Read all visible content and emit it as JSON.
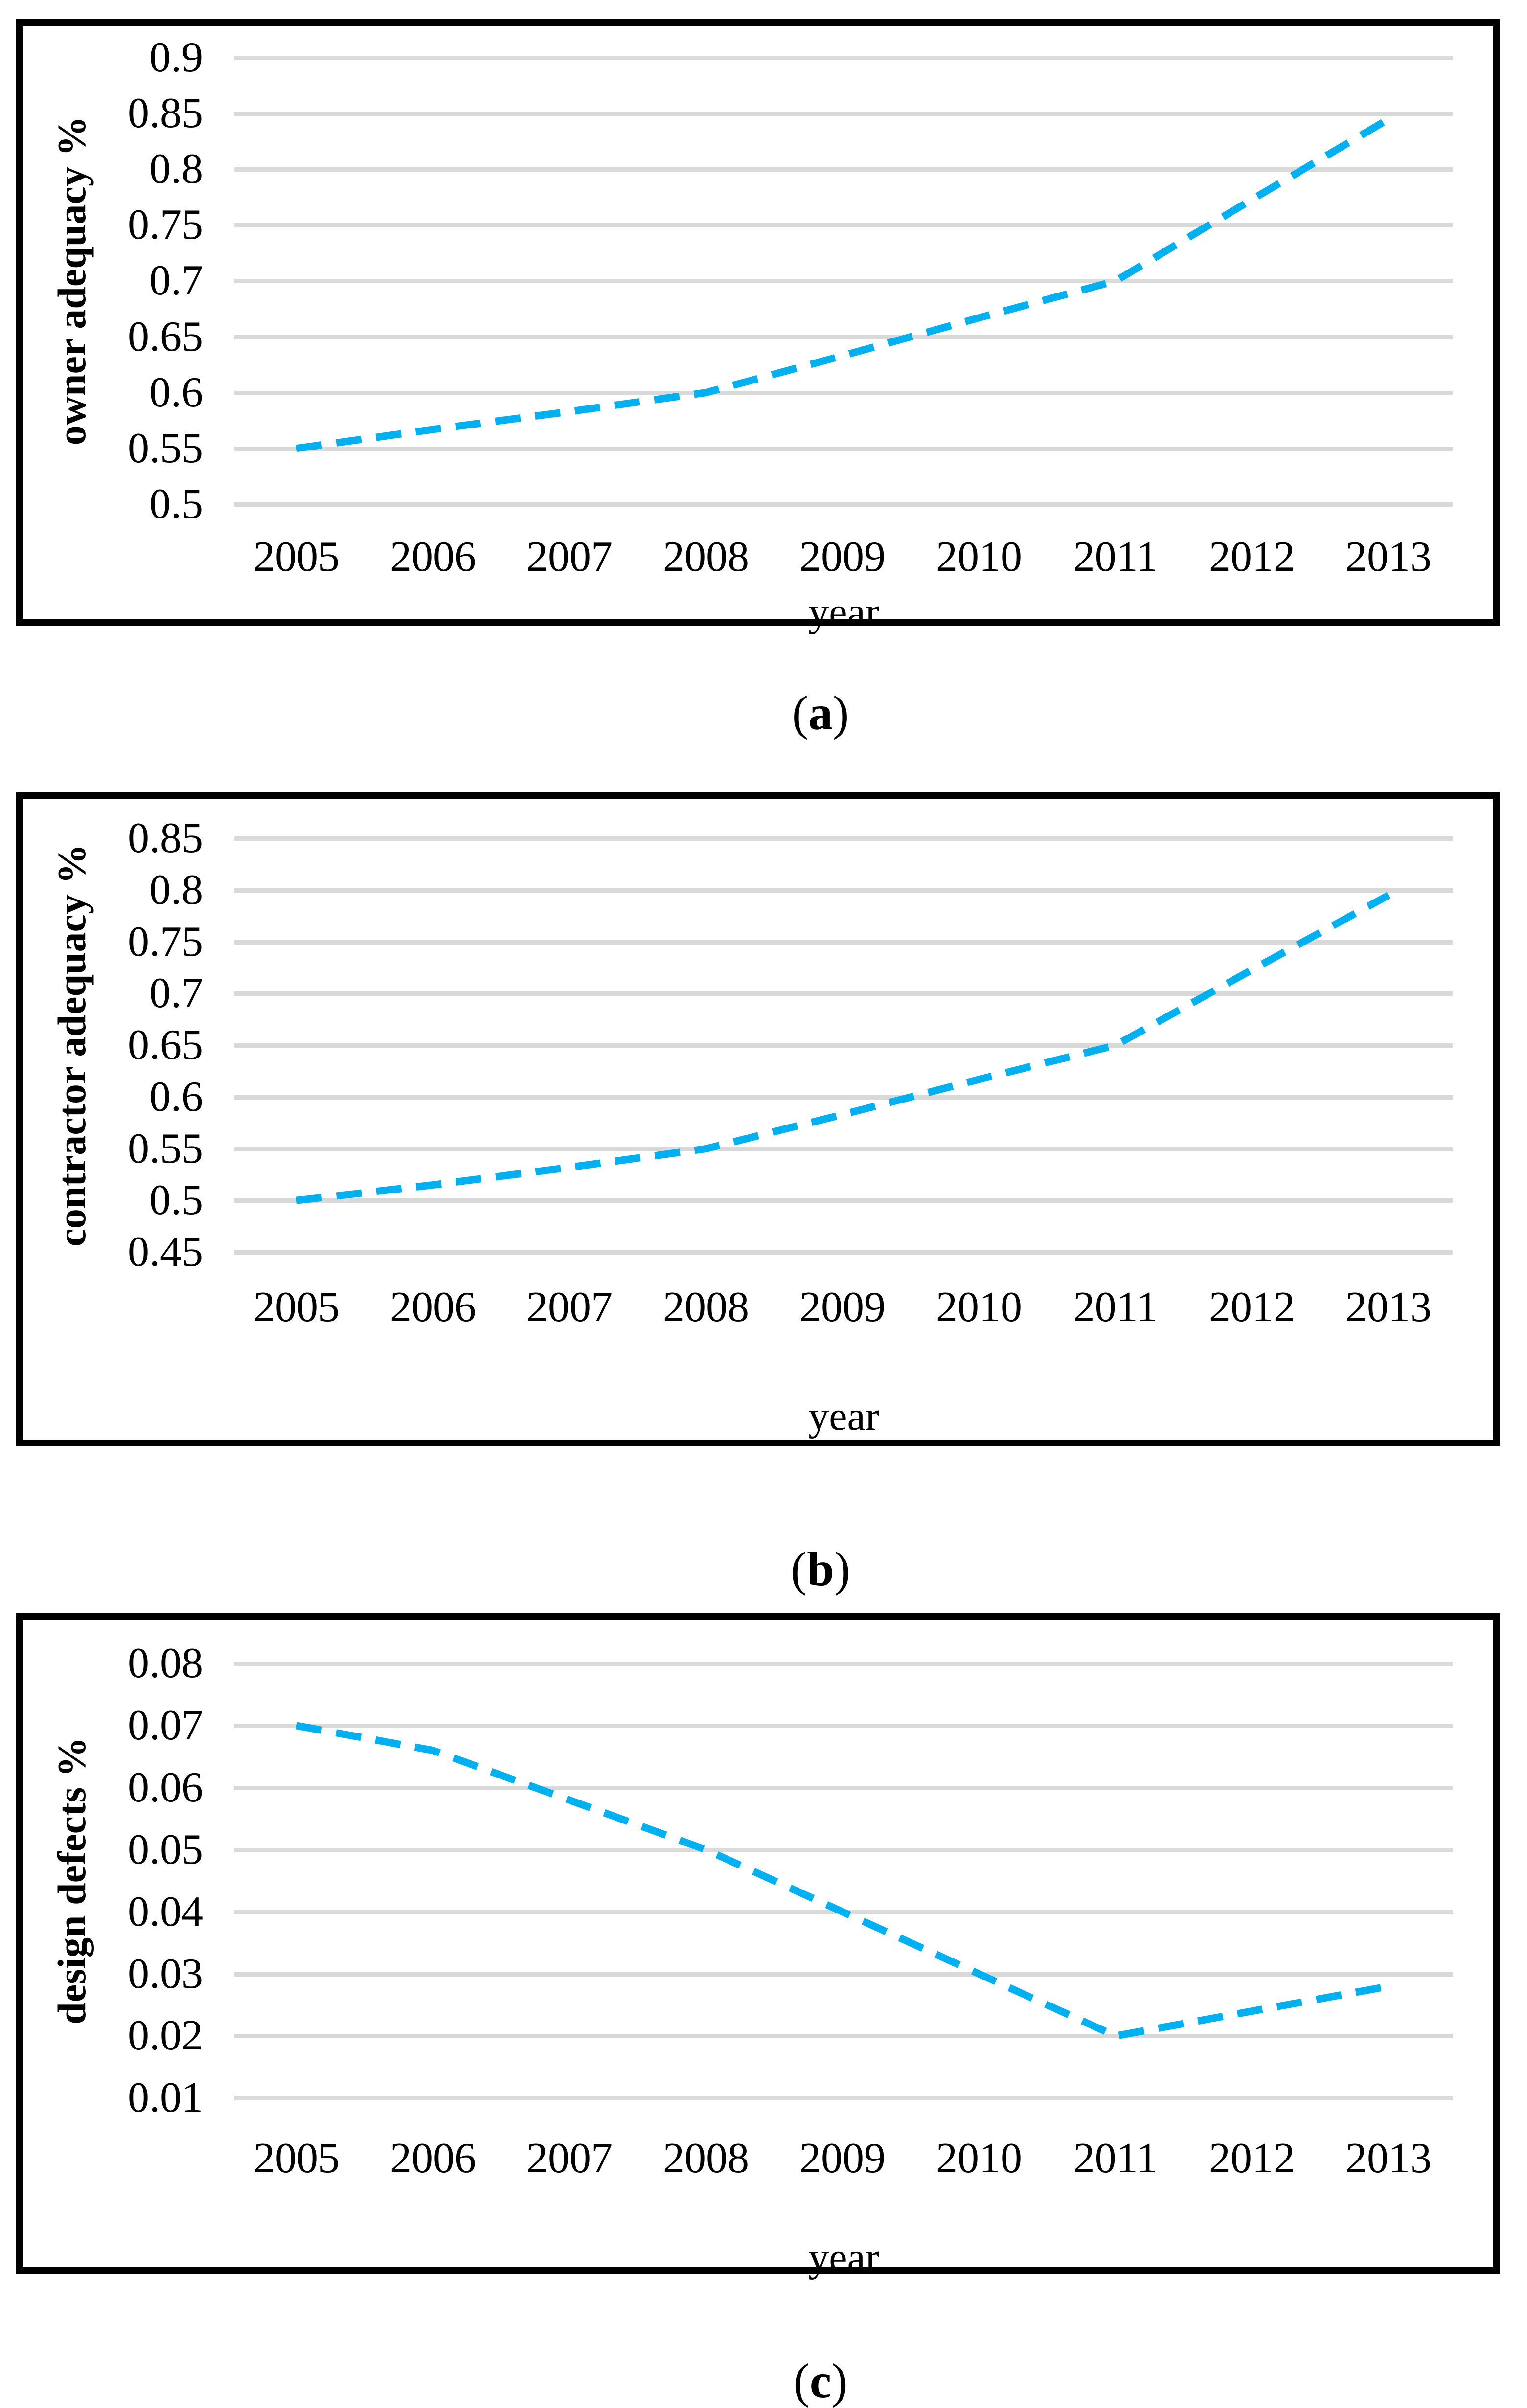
{
  "figure": {
    "paren_open": "(",
    "paren_close": ")"
  },
  "styles": {
    "line_color": "#00B0F0",
    "gridline_color": "#D9D9D9",
    "border_color": "#000000",
    "background": "#FFFFFF",
    "text_color": "#000000"
  },
  "chart_data": [
    {
      "type": "line",
      "panel": "a",
      "title": "",
      "xlabel": "year",
      "ylabel": "owner adequacy %",
      "x": [
        "2005",
        "2006",
        "2007",
        "2008",
        "2009",
        "2010",
        "2011",
        "2012",
        "2013"
      ],
      "values": [
        0.55,
        0.567,
        0.583,
        0.6,
        0.633,
        0.667,
        0.7,
        0.773,
        0.845
      ],
      "ylim": [
        0.5,
        0.9
      ],
      "ytick_step": 0.05,
      "yticks": [
        "0.9",
        "0.85",
        "0.8",
        "0.75",
        "0.7",
        "0.65",
        "0.6",
        "0.55",
        "0.5"
      ],
      "line_style": "dashed",
      "marker": "none",
      "legend": "none",
      "grid": "horizontal"
    },
    {
      "type": "line",
      "panel": "b",
      "title": "",
      "xlabel": "year",
      "ylabel": "contractor adequacy %",
      "x": [
        "2005",
        "2006",
        "2007",
        "2008",
        "2009",
        "2010",
        "2011",
        "2012",
        "2013"
      ],
      "values": [
        0.5,
        0.515,
        0.532,
        0.55,
        0.583,
        0.617,
        0.65,
        0.723,
        0.795
      ],
      "ylim": [
        0.45,
        0.85
      ],
      "ytick_step": 0.05,
      "yticks": [
        "0.85",
        "0.8",
        "0.75",
        "0.7",
        "0.65",
        "0.6",
        "0.55",
        "0.5",
        "0.45"
      ],
      "line_style": "dashed",
      "marker": "none",
      "legend": "none",
      "grid": "horizontal"
    },
    {
      "type": "line",
      "panel": "c",
      "title": "",
      "xlabel": "year",
      "ylabel": "design defects %",
      "x": [
        "2005",
        "2006",
        "2007",
        "2008",
        "2009",
        "2010",
        "2011",
        "2012",
        "2013"
      ],
      "values": [
        0.07,
        0.066,
        0.058,
        0.05,
        0.04,
        0.03,
        0.02,
        0.024,
        0.028
      ],
      "ylim": [
        0.01,
        0.08
      ],
      "ytick_step": 0.01,
      "yticks": [
        "0.08",
        "0.07",
        "0.06",
        "0.05",
        "0.04",
        "0.03",
        "0.02",
        "0.01"
      ],
      "line_style": "dashed",
      "marker": "none",
      "legend": "none",
      "grid": "horizontal"
    }
  ]
}
